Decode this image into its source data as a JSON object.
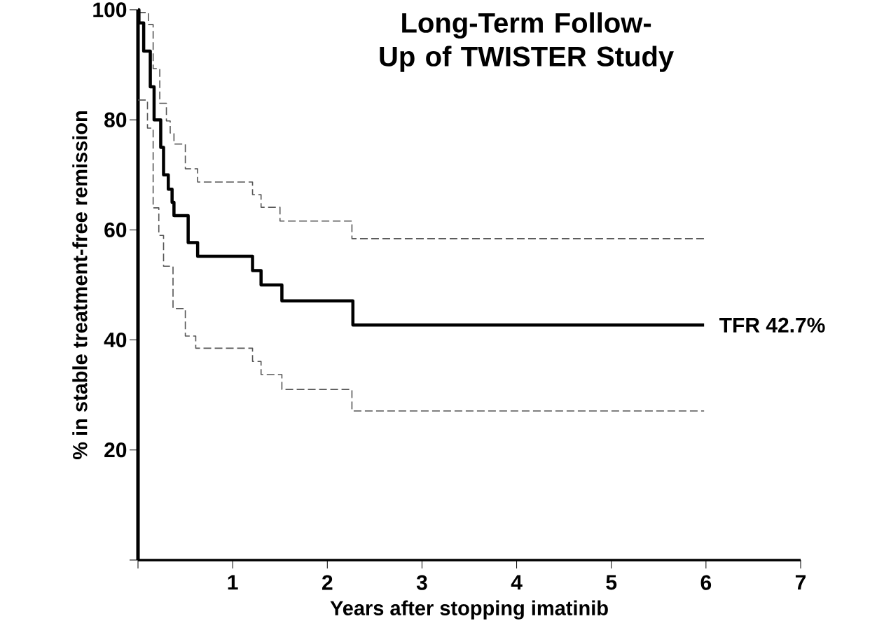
{
  "chart_data": {
    "type": "step",
    "title": "Long-Term Follow-Up of TWISTER Study",
    "xlabel": "Years after stopping imatinib",
    "ylabel": "% in stable treatment-free remission",
    "xlim": [
      0,
      7
    ],
    "ylim": [
      0,
      100
    ],
    "xticks": [
      {
        "value": 0,
        "label": null
      },
      1,
      2,
      3,
      4,
      5,
      6,
      7
    ],
    "yticks": [
      {
        "value": 0,
        "label": null
      },
      20,
      40,
      60,
      80,
      100
    ],
    "grid": false,
    "series": [
      {
        "color": "#555555",
        "line_style": "dashed",
        "x": [
          0,
          0.11,
          0.16,
          0.23,
          0.3,
          0.34,
          0.38,
          0.5,
          0.63,
          1.21,
          1.3,
          1.5,
          2.26,
          5.98
        ],
        "values": [
          99.5,
          97.3,
          89.3,
          83,
          79.8,
          77.6,
          75.6,
          71.1,
          68.7,
          66.4,
          64.1,
          61.6,
          58.4,
          58.4
        ]
      },
      {
        "color": "#000000",
        "line_style": "solid",
        "x": [
          0,
          0.01,
          0.06,
          0.13,
          0.17,
          0.24,
          0.27,
          0.32,
          0.36,
          0.38,
          0.53,
          0.63,
          1.21,
          1.3,
          1.52,
          2.27,
          5.98
        ],
        "values": [
          100,
          97.6,
          92.5,
          86,
          80,
          75,
          70,
          67.4,
          65,
          62.6,
          57.7,
          55.2,
          52.6,
          50,
          47.1,
          42.7,
          42.7
        ]
      },
      {
        "color": "#555555",
        "line_style": "dashed",
        "x": [
          0,
          0.1,
          0.16,
          0.22,
          0.27,
          0.37,
          0.5,
          0.61,
          1.21,
          1.3,
          1.52,
          2.26,
          5.98
        ],
        "values": [
          83.6,
          78.5,
          64,
          59,
          53.4,
          45.7,
          40.7,
          38.5,
          36.1,
          33.7,
          31,
          27.1,
          27.1
        ]
      }
    ],
    "annotations": [
      {
        "text": "TFR 42.7%",
        "x": 5.98,
        "y": 42.7
      }
    ]
  }
}
